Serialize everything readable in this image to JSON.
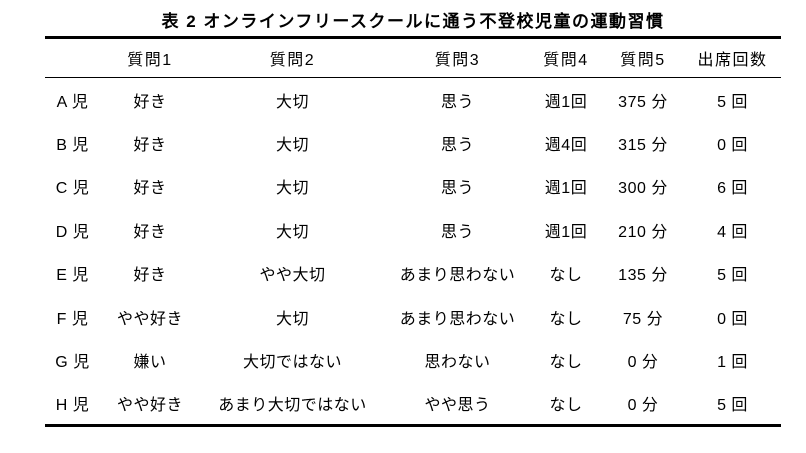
{
  "caption": "表 2  オンラインフリースクールに通う不登校児童の運動習慣",
  "colors": {
    "text": "#000000",
    "background": "#ffffff",
    "rule": "#000000"
  },
  "table": {
    "columns": [
      "",
      "質問1",
      "質問2",
      "質問3",
      "質問4",
      "質問5",
      "出席回数"
    ],
    "rows": [
      {
        "id": "A 児",
        "q1": "好き",
        "q2": "大切",
        "q3": "思う",
        "q4": "週1回",
        "q5": "375 分",
        "attendance": "5 回"
      },
      {
        "id": "B 児",
        "q1": "好き",
        "q2": "大切",
        "q3": "思う",
        "q4": "週4回",
        "q5": "315 分",
        "attendance": "0 回"
      },
      {
        "id": "C 児",
        "q1": "好き",
        "q2": "大切",
        "q3": "思う",
        "q4": "週1回",
        "q5": "300 分",
        "attendance": "6 回"
      },
      {
        "id": "D 児",
        "q1": "好き",
        "q2": "大切",
        "q3": "思う",
        "q4": "週1回",
        "q5": "210 分",
        "attendance": "4 回"
      },
      {
        "id": "E 児",
        "q1": "好き",
        "q2": "やや大切",
        "q3": "あまり思わない",
        "q4": "なし",
        "q5": "135 分",
        "attendance": "5 回"
      },
      {
        "id": "F 児",
        "q1": "やや好き",
        "q2": "大切",
        "q3": "あまり思わない",
        "q4": "なし",
        "q5": "75 分",
        "attendance": "0 回"
      },
      {
        "id": "G 児",
        "q1": "嫌い",
        "q2": "大切ではない",
        "q3": "思わない",
        "q4": "なし",
        "q5": "0 分",
        "attendance": "1 回"
      },
      {
        "id": "H 児",
        "q1": "やや好き",
        "q2": "あまり大切ではない",
        "q3": "やや思う",
        "q4": "なし",
        "q5": "0 分",
        "attendance": "5 回"
      }
    ]
  }
}
